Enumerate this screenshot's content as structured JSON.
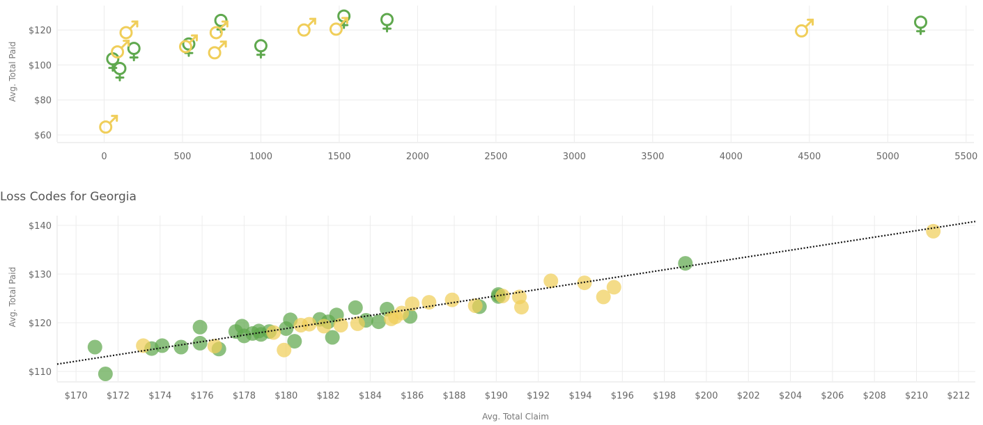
{
  "colors": {
    "female": "#5fa84e",
    "male": "#f0ce5a",
    "trend": "#111111"
  },
  "chart_data": [
    {
      "type": "scatter",
      "marker": "gender-symbol",
      "title": "",
      "xlabel": "",
      "ylabel": "Avg. Total Paid",
      "xlim": [
        -300,
        5550
      ],
      "ylim": [
        56,
        134
      ],
      "xticks": [
        0,
        500,
        1000,
        1500,
        2000,
        2500,
        3000,
        3500,
        4000,
        4500,
        5000,
        5500
      ],
      "xtick_labels": [
        "0",
        "500",
        "1000",
        "1500",
        "2000",
        "2500",
        "3000",
        "3500",
        "4000",
        "4500",
        "5000",
        "5500"
      ],
      "yticks": [
        60,
        80,
        100,
        120
      ],
      "ytick_labels": [
        "$60",
        "$80",
        "$100",
        "$120"
      ],
      "series": [
        {
          "symbol": "female",
          "points": [
            {
              "x": 55,
              "y": 103.5
            },
            {
              "x": 100,
              "y": 98
            },
            {
              "x": 190,
              "y": 109.5
            },
            {
              "x": 540,
              "y": 112
            },
            {
              "x": 745,
              "y": 125.5
            },
            {
              "x": 1000,
              "y": 111
            },
            {
              "x": 1530,
              "y": 128
            },
            {
              "x": 1805,
              "y": 126
            },
            {
              "x": 5210,
              "y": 124.5
            }
          ]
        },
        {
          "symbol": "male",
          "points": [
            {
              "x": 10,
              "y": 64.5
            },
            {
              "x": 85,
              "y": 107.5
            },
            {
              "x": 140,
              "y": 118.5
            },
            {
              "x": 520,
              "y": 110.5
            },
            {
              "x": 705,
              "y": 107
            },
            {
              "x": 715,
              "y": 118.5
            },
            {
              "x": 1275,
              "y": 120
            },
            {
              "x": 1480,
              "y": 120.5
            },
            {
              "x": 4450,
              "y": 119.5
            }
          ]
        }
      ]
    },
    {
      "type": "scatter",
      "title": "Loss Codes for Georgia",
      "xlabel": "Avg. Total Claim",
      "ylabel": "Avg. Total Paid",
      "xlim": [
        169.1,
        212.8
      ],
      "ylim": [
        108,
        142
      ],
      "xticks": [
        170,
        172,
        174,
        176,
        178,
        180,
        182,
        184,
        186,
        188,
        190,
        192,
        194,
        196,
        198,
        200,
        202,
        204,
        206,
        208,
        210,
        212
      ],
      "xtick_labels": [
        "$170",
        "$172",
        "$174",
        "$176",
        "$178",
        "$180",
        "$182",
        "$184",
        "$186",
        "$188",
        "$190",
        "$192",
        "$194",
        "$196",
        "$198",
        "$200",
        "$202",
        "$204",
        "$206",
        "$208",
        "$210",
        "$212"
      ],
      "yticks": [
        110,
        120,
        130,
        140
      ],
      "ytick_labels": [
        "$110",
        "$120",
        "$130",
        "$140"
      ],
      "trendline": {
        "x": [
          169.1,
          212.8
        ],
        "y": [
          111.5,
          140.8
        ]
      },
      "series": [
        {
          "group": "female",
          "points": [
            {
              "x": 170.9,
              "y": 115
            },
            {
              "x": 171.4,
              "y": 109.5
            },
            {
              "x": 173.6,
              "y": 114.7
            },
            {
              "x": 174.1,
              "y": 115.3
            },
            {
              "x": 175.0,
              "y": 115
            },
            {
              "x": 175.9,
              "y": 115.8
            },
            {
              "x": 175.9,
              "y": 119.1
            },
            {
              "x": 176.8,
              "y": 114.6
            },
            {
              "x": 177.6,
              "y": 118.2
            },
            {
              "x": 177.9,
              "y": 119.3
            },
            {
              "x": 178.0,
              "y": 117.3
            },
            {
              "x": 178.4,
              "y": 117.8
            },
            {
              "x": 178.7,
              "y": 118.3
            },
            {
              "x": 178.8,
              "y": 117.6
            },
            {
              "x": 179.2,
              "y": 118.2
            },
            {
              "x": 180.0,
              "y": 118.8
            },
            {
              "x": 180.2,
              "y": 120.6
            },
            {
              "x": 180.4,
              "y": 116.2
            },
            {
              "x": 181.6,
              "y": 120.7
            },
            {
              "x": 182.0,
              "y": 120.2
            },
            {
              "x": 182.2,
              "y": 117
            },
            {
              "x": 182.4,
              "y": 121.6
            },
            {
              "x": 183.3,
              "y": 123.1
            },
            {
              "x": 183.8,
              "y": 120.5
            },
            {
              "x": 184.4,
              "y": 120.2
            },
            {
              "x": 184.8,
              "y": 122.8
            },
            {
              "x": 185.9,
              "y": 121.3
            },
            {
              "x": 189.2,
              "y": 123.3
            },
            {
              "x": 190.1,
              "y": 125.8
            },
            {
              "x": 190.1,
              "y": 125.4
            },
            {
              "x": 199.0,
              "y": 132.2
            }
          ]
        },
        {
          "group": "male",
          "points": [
            {
              "x": 173.2,
              "y": 115.3
            },
            {
              "x": 176.6,
              "y": 115.2
            },
            {
              "x": 179.4,
              "y": 118
            },
            {
              "x": 179.9,
              "y": 114.4
            },
            {
              "x": 180.7,
              "y": 119.5
            },
            {
              "x": 181.1,
              "y": 119.7
            },
            {
              "x": 181.8,
              "y": 119.3
            },
            {
              "x": 182.6,
              "y": 119.5
            },
            {
              "x": 183.4,
              "y": 119.8
            },
            {
              "x": 185.0,
              "y": 120.8
            },
            {
              "x": 185.2,
              "y": 121.2
            },
            {
              "x": 185.5,
              "y": 122.0
            },
            {
              "x": 186.0,
              "y": 123.9
            },
            {
              "x": 186.8,
              "y": 124.2
            },
            {
              "x": 187.9,
              "y": 124.7
            },
            {
              "x": 189.0,
              "y": 123.5
            },
            {
              "x": 190.3,
              "y": 125.5
            },
            {
              "x": 191.1,
              "y": 125.3
            },
            {
              "x": 191.2,
              "y": 123.2
            },
            {
              "x": 192.6,
              "y": 128.6
            },
            {
              "x": 194.2,
              "y": 128.2
            },
            {
              "x": 195.1,
              "y": 125.3
            },
            {
              "x": 195.6,
              "y": 127.3
            },
            {
              "x": 210.8,
              "y": 138.8
            }
          ]
        }
      ]
    }
  ]
}
